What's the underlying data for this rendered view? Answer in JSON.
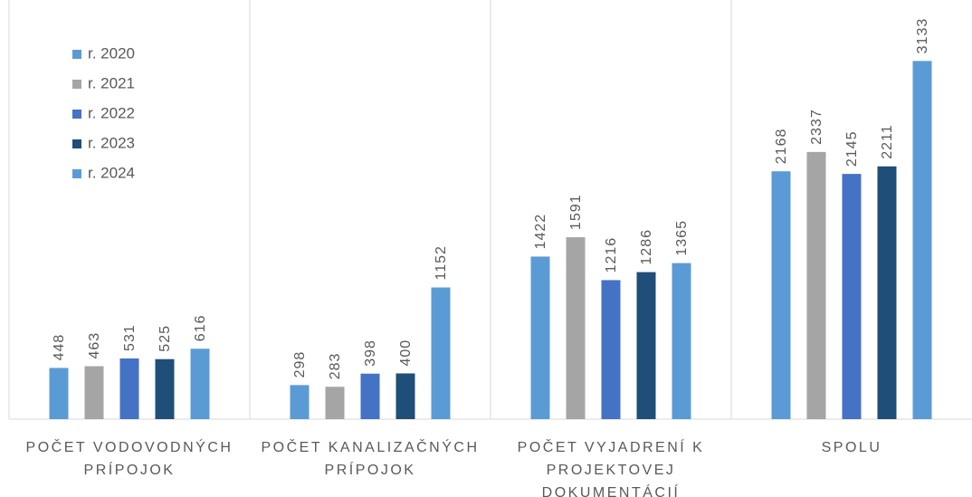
{
  "chart_data": {
    "type": "bar",
    "categories": [
      "POČET VODOVODNÝCH PRÍPOJOK",
      "POČET KANALIZAČNÝCH PRÍPOJOK",
      "POČET VYJADRENÍ K PROJEKTOVEJ DOKUMENTÁCIÍ",
      "SPOLU"
    ],
    "series": [
      {
        "name": "r. 2020",
        "color": "#5b9bd5",
        "values": [
          448,
          298,
          1422,
          2168
        ]
      },
      {
        "name": "r. 2021",
        "color": "#a5a5a5",
        "values": [
          463,
          283,
          1591,
          2337
        ]
      },
      {
        "name": "r. 2022",
        "color": "#4472c4",
        "values": [
          531,
          398,
          1216,
          2145
        ]
      },
      {
        "name": "r. 2023",
        "color": "#1f4e79",
        "values": [
          525,
          400,
          1286,
          2211
        ]
      },
      {
        "name": "r. 2024",
        "color": "#5b9bd5",
        "values": [
          616,
          1152,
          1365,
          3133
        ]
      }
    ],
    "ylim": [
      0,
      3500
    ],
    "legend": "upper left"
  }
}
